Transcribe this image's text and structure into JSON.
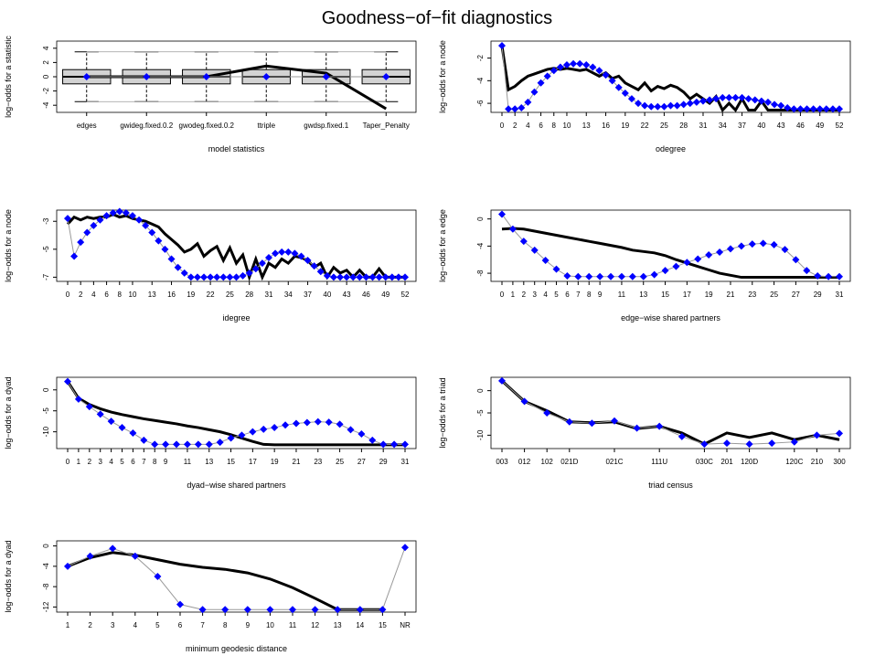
{
  "title": "Goodness−of−fit diagnostics",
  "chart_data": [
    {
      "type": "box",
      "xlabel": "model statistics",
      "ylabel": "log−odds for a statistic",
      "categories": [
        "edges",
        "gwideg.fixed.0.2",
        "gwodeg.fixed.0.2",
        "ttriple",
        "gwdsp.fixed.1",
        "Taper_Penalty"
      ],
      "ylim": [
        -5,
        5
      ],
      "yticks": [
        -4,
        -2,
        0,
        2,
        4
      ],
      "whisker_min": [
        -3.5,
        -3.5,
        -3.5,
        -3.5,
        -3.5,
        -3.5
      ],
      "q1": [
        -1,
        -1,
        -1,
        -1,
        -1,
        -1
      ],
      "median": [
        0,
        0,
        0,
        0,
        0,
        0
      ],
      "q3": [
        1,
        1,
        1,
        1,
        1,
        1
      ],
      "whisker_max": [
        3.5,
        3.5,
        3.5,
        3.5,
        3.5,
        3.5
      ],
      "series": [
        {
          "color": "#000000",
          "values": [
            0,
            0,
            0,
            1.5,
            0.5,
            -4.5
          ]
        },
        {
          "color": "#0000ff",
          "values": [
            0,
            0,
            0,
            0,
            0,
            0
          ]
        }
      ]
    },
    {
      "type": "line",
      "xlabel": "odegree",
      "ylabel": "log−odds for a node",
      "categories": [
        "0",
        null,
        "2",
        null,
        "4",
        null,
        "6",
        null,
        "8",
        null,
        "10",
        null,
        null,
        "13",
        null,
        null,
        "16",
        null,
        null,
        "19",
        null,
        null,
        "22",
        null,
        null,
        "25",
        null,
        null,
        "28",
        null,
        null,
        "31",
        null,
        null,
        "34",
        null,
        null,
        "37",
        null,
        null,
        "40",
        null,
        null,
        "43",
        null,
        null,
        "46",
        null,
        null,
        "49",
        null,
        null,
        "52"
      ],
      "ylim": [
        -6.8,
        -0.5
      ],
      "yticks": [
        -6,
        -4,
        -2
      ],
      "series": [
        {
          "color": "#000000",
          "values": [
            -0.9,
            -4.8,
            -4.5,
            -4.0,
            -3.6,
            -3.4,
            -3.2,
            -3.0,
            -2.9,
            -3.0,
            -2.9,
            -3.0,
            -3.1,
            -3.0,
            -3.3,
            -3.6,
            -3.3,
            -3.8,
            -3.6,
            -4.2,
            -4.5,
            -4.8,
            -4.2,
            -4.9,
            -4.5,
            -4.7,
            -4.4,
            -4.6,
            -5.0,
            -5.6,
            -5.2,
            -5.6,
            -6.0,
            -5.4,
            -6.6,
            -6.0,
            -6.6,
            -5.6,
            -6.6,
            -6.6,
            -5.8,
            -6.6,
            -6.6,
            -6.6,
            -6.6,
            -6.6,
            -6.6,
            -6.6,
            -6.6,
            -6.6,
            -6.6,
            -6.6,
            -6.6
          ]
        },
        {
          "color": "#0000ff",
          "values": [
            -0.9,
            -6.5,
            -6.5,
            -6.4,
            -5.9,
            -5.0,
            -4.2,
            -3.6,
            -3.1,
            -2.8,
            -2.6,
            -2.5,
            -2.5,
            -2.6,
            -2.8,
            -3.1,
            -3.5,
            -4.0,
            -4.6,
            -5.1,
            -5.6,
            -6.0,
            -6.2,
            -6.3,
            -6.3,
            -6.3,
            -6.2,
            -6.2,
            -6.1,
            -6.0,
            -5.9,
            -5.8,
            -5.7,
            -5.6,
            -5.5,
            -5.5,
            -5.5,
            -5.5,
            -5.6,
            -5.7,
            -5.8,
            -5.9,
            -6.1,
            -6.2,
            -6.4,
            -6.5,
            -6.5,
            -6.5,
            -6.5,
            -6.5,
            -6.5,
            -6.5,
            -6.5
          ]
        }
      ]
    },
    {
      "type": "line",
      "xlabel": "idegree",
      "ylabel": "log−odds for a node",
      "categories": [
        "0",
        null,
        "2",
        null,
        "4",
        null,
        "6",
        null,
        "8",
        null,
        "10",
        null,
        null,
        "13",
        null,
        null,
        "16",
        null,
        null,
        "19",
        null,
        null,
        "22",
        null,
        null,
        "25",
        null,
        null,
        "28",
        null,
        null,
        "31",
        null,
        null,
        "34",
        null,
        null,
        "37",
        null,
        null,
        "40",
        null,
        null,
        "43",
        null,
        null,
        "46",
        null,
        null,
        "49",
        null,
        null,
        "52"
      ],
      "ylim": [
        -7.3,
        -2.2
      ],
      "yticks": [
        -7,
        -5,
        -3
      ],
      "series": [
        {
          "color": "#000000",
          "values": [
            -3.2,
            -2.7,
            -2.9,
            -2.7,
            -2.8,
            -2.7,
            -2.7,
            -2.5,
            -2.7,
            -2.6,
            -2.8,
            -2.9,
            -3.0,
            -3.2,
            -3.4,
            -3.9,
            -4.3,
            -4.7,
            -5.2,
            -5.0,
            -4.6,
            -5.5,
            -5.1,
            -4.8,
            -5.8,
            -4.9,
            -6.0,
            -5.4,
            -7.0,
            -5.7,
            -7.0,
            -6.0,
            -6.3,
            -5.7,
            -6.0,
            -5.5,
            -5.6,
            -5.8,
            -6.3,
            -6.0,
            -7.0,
            -6.3,
            -6.7,
            -6.5,
            -7.0,
            -6.5,
            -7.0,
            -7.0,
            -6.4,
            -7.0,
            -7.0,
            -7.0,
            -7.0
          ]
        },
        {
          "color": "#0000ff",
          "values": [
            -2.8,
            -5.5,
            -4.5,
            -3.8,
            -3.3,
            -2.9,
            -2.6,
            -2.4,
            -2.3,
            -2.4,
            -2.6,
            -2.9,
            -3.3,
            -3.8,
            -4.4,
            -5.0,
            -5.7,
            -6.3,
            -6.7,
            -7.0,
            -7.0,
            -7.0,
            -7.0,
            -7.0,
            -7.0,
            -7.0,
            -7.0,
            -6.9,
            -6.7,
            -6.4,
            -6.0,
            -5.6,
            -5.3,
            -5.2,
            -5.2,
            -5.3,
            -5.5,
            -5.8,
            -6.2,
            -6.6,
            -6.9,
            -7.0,
            -7.0,
            -7.0,
            -7.0,
            -7.0,
            -7.0,
            -7.0,
            -7.0,
            -7.0,
            -7.0,
            -7.0,
            -7.0
          ]
        }
      ]
    },
    {
      "type": "line",
      "xlabel": "edge−wise shared partners",
      "ylabel": "log−odds for a edge",
      "categories": [
        "0",
        "1",
        "2",
        "3",
        "4",
        "5",
        "6",
        "7",
        "8",
        "9",
        null,
        "11",
        null,
        "13",
        null,
        "15",
        null,
        "17",
        null,
        "19",
        null,
        "21",
        null,
        "23",
        null,
        "25",
        null,
        "27",
        null,
        "29",
        null,
        "31"
      ],
      "ylim": [
        -9.2,
        1.3
      ],
      "yticks": [
        -8,
        -4,
        0
      ],
      "series": [
        {
          "color": "#000000",
          "values": [
            -1.5,
            -1.4,
            -1.5,
            -1.8,
            -2.1,
            -2.4,
            -2.7,
            -3.0,
            -3.3,
            -3.6,
            -3.9,
            -4.2,
            -4.6,
            -4.8,
            -5.0,
            -5.4,
            -6.0,
            -6.5,
            -7.0,
            -7.5,
            -8.0,
            -8.3,
            -8.6,
            -8.6,
            -8.6,
            -8.6,
            -8.6,
            -8.6,
            -8.6,
            -8.6,
            -8.6,
            -8.6
          ]
        },
        {
          "color": "#0000ff",
          "values": [
            0.7,
            -1.5,
            -3.3,
            -4.6,
            -6.1,
            -7.4,
            -8.4,
            -8.5,
            -8.5,
            -8.5,
            -8.5,
            -8.5,
            -8.5,
            -8.5,
            -8.2,
            -7.6,
            -7.0,
            -6.4,
            -5.9,
            -5.3,
            -4.9,
            -4.4,
            -4.0,
            -3.7,
            -3.6,
            -3.8,
            -4.5,
            -6.0,
            -7.6,
            -8.4,
            -8.5,
            -8.5
          ]
        }
      ]
    },
    {
      "type": "line",
      "xlabel": "dyad−wise shared partners",
      "ylabel": "log−odds for a dyad",
      "categories": [
        "0",
        "1",
        "2",
        "3",
        "4",
        "5",
        "6",
        "7",
        "8",
        "9",
        null,
        "11",
        null,
        "13",
        null,
        "15",
        null,
        "17",
        null,
        "19",
        null,
        "21",
        null,
        "23",
        null,
        "25",
        null,
        "27",
        null,
        "29",
        null,
        "31"
      ],
      "ylim": [
        -14,
        3
      ],
      "yticks": [
        -10,
        -5,
        0
      ],
      "series": [
        {
          "color": "#000000",
          "values": [
            2,
            -2,
            -3.5,
            -4.5,
            -5.3,
            -5.9,
            -6.4,
            -6.9,
            -7.3,
            -7.7,
            -8.1,
            -8.6,
            -9,
            -9.5,
            -10,
            -10.7,
            -11.5,
            -12.3,
            -13,
            -13.1,
            -13.1,
            -13.1,
            -13.1,
            -13.1,
            -13.1,
            -13.1,
            -13.1,
            -13.1,
            -13.1,
            -13.1,
            -13.1,
            -13.1
          ]
        },
        {
          "color": "#0000ff",
          "values": [
            2,
            -2.2,
            -4,
            -5.8,
            -7.5,
            -9,
            -10.3,
            -12,
            -13,
            -13,
            -13,
            -13,
            -13,
            -13,
            -12.5,
            -11.5,
            -10.8,
            -10,
            -9.4,
            -9,
            -8.4,
            -8,
            -7.8,
            -7.6,
            -7.7,
            -8.2,
            -9.5,
            -10.5,
            -12,
            -13,
            -13,
            -13
          ]
        }
      ]
    },
    {
      "type": "line",
      "xlabel": "triad census",
      "ylabel": "log−odds for a triad",
      "categories": [
        "003",
        "012",
        "102",
        "021D",
        null,
        "021C",
        null,
        "111U",
        null,
        "030C",
        "201",
        "120D",
        null,
        "120C",
        "210",
        "300"
      ],
      "ylim": [
        -13,
        3
      ],
      "yticks": [
        -10,
        -5,
        0
      ],
      "series": [
        {
          "color": "#000000",
          "values": [
            2.2,
            -2.4,
            -4.5,
            -7,
            -7.2,
            -7,
            -8.5,
            -8,
            -9.5,
            -12,
            -9.5,
            -10.5,
            -9.5,
            -11,
            -10,
            -11
          ]
        },
        {
          "color": "#0000ff",
          "values": [
            2.2,
            -2.4,
            -5,
            -7,
            -7.3,
            -6.8,
            -8.4,
            -8.0,
            -10.3,
            -12,
            -11.8,
            -12,
            -11.8,
            -11.5,
            -10,
            -9.6
          ]
        }
      ]
    },
    {
      "type": "line",
      "xlabel": "minimum geodesic distance",
      "ylabel": "log−odds for a dyad",
      "categories": [
        "1",
        "2",
        "3",
        "4",
        "5",
        "6",
        "7",
        "8",
        "9",
        "10",
        "11",
        "12",
        "13",
        "14",
        "15",
        "NR"
      ],
      "ylim": [
        -13,
        1
      ],
      "yticks": [
        -12,
        -8,
        -4,
        0
      ],
      "series": [
        {
          "color": "#000000",
          "values": [
            -4,
            -2.3,
            -1.3,
            -1.8,
            -2.7,
            -3.6,
            -4.2,
            -4.6,
            -5.3,
            -6.5,
            -8.2,
            -10.3,
            -12.5,
            -12.5,
            -12.5,
            null
          ]
        },
        {
          "color": "#0000ff",
          "values": [
            -4,
            -2,
            -0.5,
            -2,
            -6,
            -11.5,
            -12.5,
            -12.5,
            -12.5,
            -12.5,
            -12.5,
            -12.5,
            -12.5,
            -12.5,
            -12.5,
            -0.3
          ]
        }
      ]
    }
  ]
}
